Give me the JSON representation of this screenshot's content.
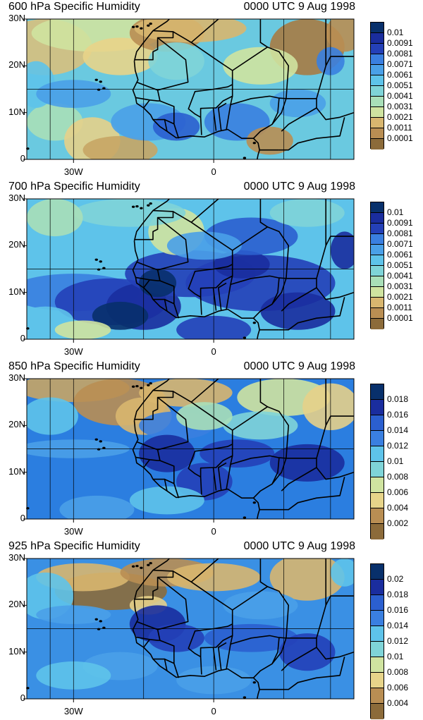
{
  "panels": [
    {
      "title": "600 hPa Specific Humidity",
      "date": "0000 UTC 9 Aug 1998",
      "y_labels": [
        "30N",
        "20N",
        "10N",
        "0"
      ],
      "x_labels": [
        "30W",
        "0"
      ],
      "legend_labels": [
        "0.01",
        "0.0091",
        "0.0081",
        "0.0071",
        "0.0061",
        "0.0051",
        "0.0041",
        "0.0031",
        "0.0021",
        "0.0011",
        "0.0001"
      ],
      "legend_colors": [
        "#08306b",
        "#1a2d9e",
        "#2440b8",
        "#2b5fcf",
        "#3a7fe0",
        "#4aa0e8",
        "#5ec3ea",
        "#7fd4d8",
        "#a9dfb8",
        "#cfe3a0",
        "#e7d48a",
        "#d8b66f",
        "#b98e53",
        "#8c6b3a"
      ]
    },
    {
      "title": "700 hPa Specific Humidity",
      "date": "0000 UTC 9 Aug 1998",
      "y_labels": [
        "30N",
        "20N",
        "10N",
        "0"
      ],
      "x_labels": [
        "30W",
        "0"
      ],
      "legend_labels": [
        "0.01",
        "0.0091",
        "0.0081",
        "0.0071",
        "0.0061",
        "0.0051",
        "0.0041",
        "0.0031",
        "0.0021",
        "0.0011",
        "0.0001"
      ],
      "legend_colors": [
        "#08306b",
        "#1a2d9e",
        "#2440b8",
        "#2b5fcf",
        "#3a7fe0",
        "#4aa0e8",
        "#5ec3ea",
        "#7fd4d8",
        "#a9dfb8",
        "#cfe3a0",
        "#e7d48a",
        "#d8b66f",
        "#b98e53",
        "#8c6b3a"
      ]
    },
    {
      "title": "850 hPa Specific Humidity",
      "date": "0000 UTC 9 Aug 1998",
      "y_labels": [
        "30N",
        "20N",
        "10N",
        "0"
      ],
      "x_labels": [
        "30W",
        "0"
      ],
      "legend_labels": [
        "0.018",
        "0.016",
        "0.014",
        "0.012",
        "0.01",
        "0.008",
        "0.006",
        "0.004",
        "0.002"
      ],
      "legend_colors": [
        "#08306b",
        "#1a2d9e",
        "#2440b8",
        "#2b5fcf",
        "#3a7fe0",
        "#4aa0e8",
        "#5ec3ea",
        "#7fd4d8",
        "#a9dfb8",
        "#cfe3a0",
        "#e7d48a",
        "#d8b66f",
        "#b98e53",
        "#8c6b3a"
      ]
    },
    {
      "title": "925 hPa Specific Humidity",
      "date": "0000 UTC 9 Aug 1998",
      "y_labels": [
        "30N",
        "20N",
        "10N",
        "0"
      ],
      "x_labels": [
        "30W",
        "0"
      ],
      "legend_labels": [
        "0.02",
        "0.018",
        "0.016",
        "0.014",
        "0.012",
        "0.01",
        "0.008",
        "0.006",
        "0.004"
      ],
      "legend_colors": [
        "#08306b",
        "#1a2d9e",
        "#2440b8",
        "#2b5fcf",
        "#3a7fe0",
        "#4aa0e8",
        "#5ec3ea",
        "#7fd4d8",
        "#a9dfb8",
        "#cfe3a0",
        "#e7d48a",
        "#d8b66f",
        "#b98e53",
        "#8c6b3a"
      ]
    }
  ]
}
